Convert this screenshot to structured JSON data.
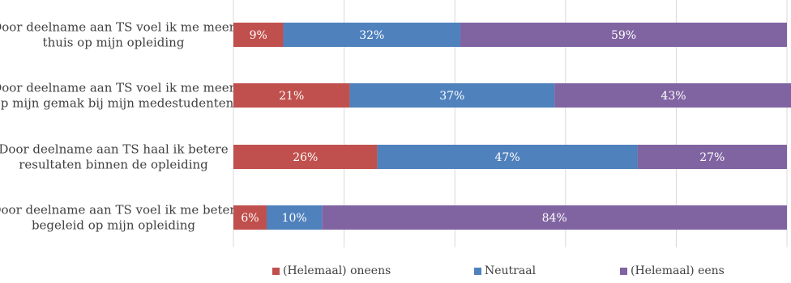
{
  "chart_data": {
    "type": "bar",
    "orientation": "horizontal",
    "stacked": true,
    "categories": [
      [
        "Door deelname aan TS voel ik me meer",
        "thuis op mijn opleiding"
      ],
      [
        "Door deelname aan TS voel ik me meer",
        "op mijn gemak bij mijn medestudenten"
      ],
      [
        "Door deelname aan TS haal ik betere",
        "resultaten binnen de opleiding"
      ],
      [
        "Door deelname aan TS voel ik me beter",
        "begeleid op mijn opleiding"
      ]
    ],
    "series": [
      {
        "name": "(Helemaal) oneens",
        "color": "#C0504D",
        "values": [
          9,
          21,
          26,
          6
        ],
        "labels": [
          "9%",
          "21%",
          "26%",
          "6%"
        ]
      },
      {
        "name": "Neutraal",
        "color": "#4F81BD",
        "values": [
          32,
          37,
          47,
          10
        ],
        "labels": [
          "32%",
          "37%",
          "47%",
          "10%"
        ]
      },
      {
        "name": "(Helemaal) eens",
        "color": "#8064A2",
        "values": [
          59,
          43,
          27,
          84
        ],
        "labels": [
          "59%",
          "43%",
          "27%",
          "84%"
        ]
      }
    ],
    "xlim": [
      0,
      100
    ],
    "grid": true,
    "legend_position": "bottom"
  }
}
